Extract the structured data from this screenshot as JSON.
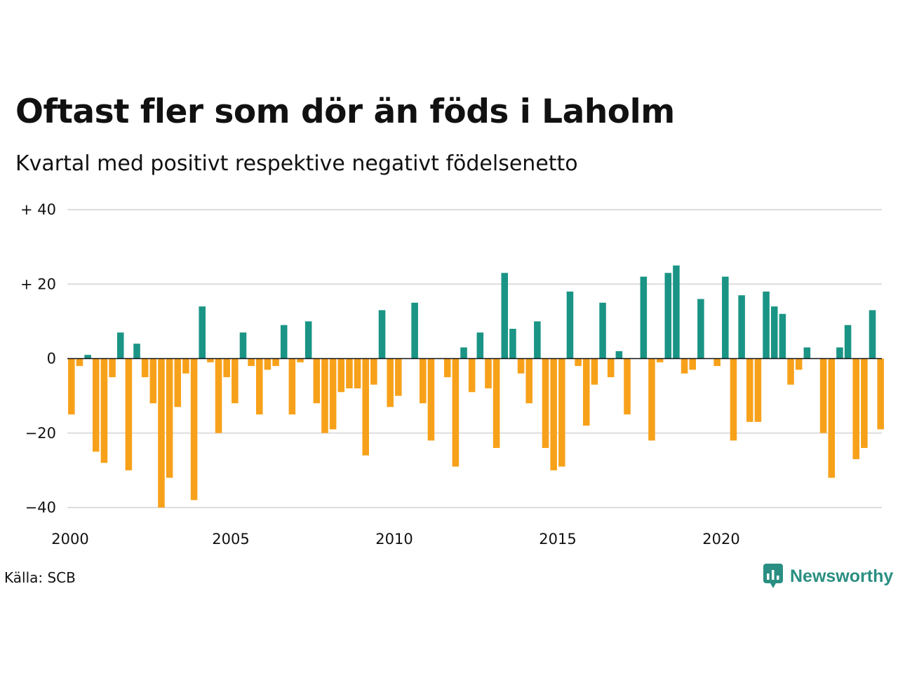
{
  "title": "Oftast fler som dör än föds i Laholm",
  "subtitle": "Kvartal med positivt respektive negativt födelsenetto",
  "source": "Källa: SCB",
  "brand": "Newsworthy",
  "colors": {
    "positive": "#1a9485",
    "negative": "#f7a11a",
    "grid": "#dddddd",
    "brand": "#2a8f82"
  },
  "chart_data": {
    "type": "bar",
    "title": "Oftast fler som dör än föds i Laholm",
    "subtitle": "Kvartal med positivt respektive negativt födelsenetto",
    "start_year": 2000,
    "ylim": [
      -40,
      40
    ],
    "yticks": [
      40,
      20,
      0,
      -20,
      -40
    ],
    "ytick_labels": [
      "+ 40",
      "+ 20",
      "0",
      "−20",
      "−40"
    ],
    "xticks": [
      "2000",
      "2005",
      "2010",
      "2015",
      "2020"
    ],
    "grid": true,
    "values": [
      -15,
      -2,
      1,
      -25,
      -28,
      -5,
      7,
      -30,
      4,
      -5,
      -12,
      -40,
      -32,
      -13,
      -4,
      -38,
      14,
      -1,
      -20,
      -5,
      -12,
      7,
      -2,
      -15,
      -3,
      -2,
      9,
      -15,
      -1,
      10,
      -12,
      -20,
      -19,
      -9,
      -8,
      -8,
      -26,
      -7,
      13,
      -13,
      -10,
      0,
      15,
      -12,
      -22,
      0,
      -5,
      -29,
      3,
      -9,
      7,
      -8,
      -24,
      23,
      8,
      -4,
      -12,
      10,
      -24,
      -30,
      -29,
      18,
      -2,
      -18,
      -7,
      15,
      -5,
      2,
      -15,
      0,
      22,
      -22,
      -1,
      23,
      25,
      -4,
      -3,
      16,
      0,
      -2,
      22,
      -22,
      17,
      -17,
      -17,
      18,
      14,
      12,
      -7,
      -3,
      3,
      0,
      -20,
      -32,
      3,
      9,
      -27,
      -24,
      13,
      -19
    ]
  }
}
